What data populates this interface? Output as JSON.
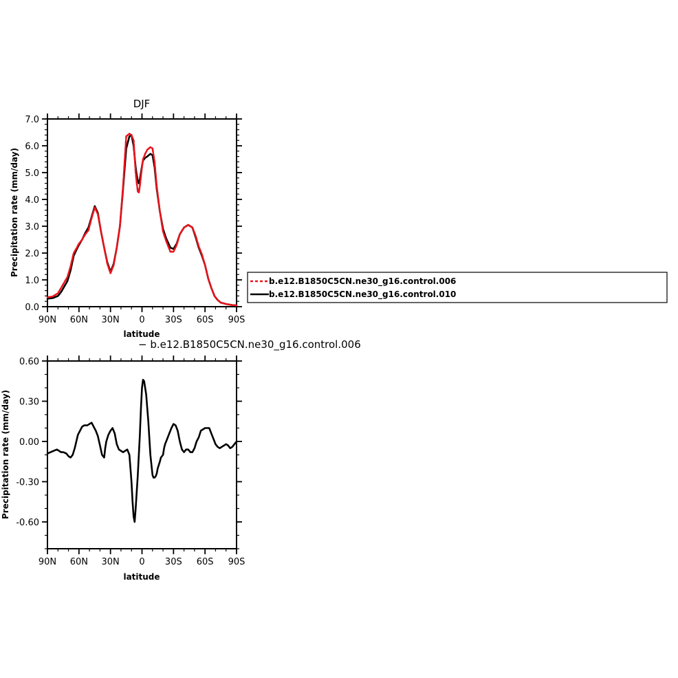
{
  "figure": {
    "subtitle": "− b.e12.B1850C5CN.ne30_g16.control.006"
  },
  "chart_data": [
    {
      "type": "line",
      "title": "DJF",
      "xlabel": "latitude",
      "ylabel": "Precipitation rate (mm/day)",
      "xlim": [
        90,
        -90
      ],
      "ylim": [
        0,
        7
      ],
      "x_ticks": [
        90,
        60,
        30,
        0,
        -30,
        -60,
        -90
      ],
      "x_tick_labels": [
        "90N",
        "60N",
        "30N",
        "0",
        "30S",
        "60S",
        "90S"
      ],
      "y_ticks": [
        0,
        1,
        2,
        3,
        4,
        5,
        6,
        7
      ],
      "y_tick_labels": [
        "0.0",
        "1.0",
        "2.0",
        "3.0",
        "4.0",
        "5.0",
        "6.0",
        "7.0"
      ],
      "grid": false,
      "legend_position": "right",
      "series": [
        {
          "name": "b.e12.B1850C5CN.ne30_g16.control.006",
          "color": "#e8141c",
          "dash": "dashed",
          "x": [
            90,
            85,
            80,
            77,
            74,
            71,
            68,
            65,
            62,
            60,
            57,
            54,
            51,
            48,
            45,
            42,
            39,
            36,
            33,
            30,
            27,
            24,
            21,
            18,
            15,
            12,
            10,
            8,
            6,
            5,
            4,
            3,
            2,
            0,
            -1,
            -2,
            -3,
            -5,
            -8,
            -10,
            -12,
            -14,
            -17,
            -20,
            -23,
            -27,
            -30,
            -33,
            -36,
            -40,
            -44,
            -48,
            -51,
            -54,
            -57,
            -60,
            -63,
            -66,
            -69,
            -72,
            -75,
            -78,
            -80,
            -83,
            -86,
            -90
          ],
          "y": [
            0.35,
            0.38,
            0.5,
            0.7,
            0.9,
            1.1,
            1.5,
            2.0,
            2.2,
            2.35,
            2.5,
            2.7,
            2.85,
            3.3,
            3.7,
            3.45,
            2.8,
            2.2,
            1.6,
            1.25,
            1.55,
            2.2,
            3.0,
            4.5,
            6.35,
            6.45,
            6.4,
            6.2,
            5.0,
            4.6,
            4.3,
            4.25,
            4.5,
            5.2,
            5.5,
            5.6,
            5.7,
            5.85,
            5.95,
            5.9,
            5.4,
            4.5,
            3.55,
            2.8,
            2.45,
            2.05,
            2.05,
            2.3,
            2.7,
            2.95,
            3.05,
            2.95,
            2.65,
            2.25,
            1.95,
            1.55,
            1.05,
            0.7,
            0.4,
            0.25,
            0.15,
            0.12,
            0.1,
            0.08,
            0.06,
            0.05
          ]
        },
        {
          "name": "b.e12.B1850C5CN.ne30_g16.control.010",
          "color": "#000000",
          "dash": "solid",
          "x": [
            90,
            85,
            80,
            77,
            74,
            71,
            68,
            65,
            62,
            60,
            57,
            54,
            51,
            48,
            45,
            42,
            39,
            36,
            33,
            30,
            27,
            24,
            21,
            18,
            15,
            12,
            10,
            8,
            6,
            5,
            4,
            3,
            2,
            0,
            -1,
            -2,
            -3,
            -5,
            -8,
            -10,
            -12,
            -14,
            -17,
            -20,
            -23,
            -27,
            -30,
            -33,
            -36,
            -40,
            -44,
            -48,
            -51,
            -54,
            -57,
            -60,
            -63,
            -66,
            -69,
            -72,
            -75,
            -78,
            -80,
            -83,
            -86,
            -90
          ],
          "y": [
            0.3,
            0.32,
            0.4,
            0.55,
            0.75,
            0.95,
            1.35,
            1.9,
            2.15,
            2.3,
            2.5,
            2.75,
            2.95,
            3.35,
            3.75,
            3.5,
            2.8,
            2.2,
            1.65,
            1.3,
            1.6,
            2.2,
            3.0,
            4.4,
            5.9,
            6.35,
            6.4,
            6.0,
            5.2,
            4.9,
            4.7,
            4.6,
            4.75,
            5.25,
            5.45,
            5.5,
            5.55,
            5.6,
            5.7,
            5.65,
            5.2,
            4.4,
            3.55,
            2.9,
            2.55,
            2.2,
            2.15,
            2.35,
            2.7,
            2.95,
            3.05,
            2.95,
            2.6,
            2.2,
            1.9,
            1.55,
            1.05,
            0.7,
            0.4,
            0.25,
            0.15,
            0.12,
            0.1,
            0.08,
            0.06,
            0.05
          ]
        }
      ]
    },
    {
      "type": "line",
      "title": "",
      "xlabel": "latitude",
      "ylabel": "Precipitation rate (mm/day)",
      "xlim": [
        90,
        -90
      ],
      "ylim": [
        -0.8,
        0.6
      ],
      "x_ticks": [
        90,
        60,
        30,
        0,
        -30,
        -60,
        -90
      ],
      "x_tick_labels": [
        "90N",
        "60N",
        "30N",
        "0",
        "30S",
        "60S",
        "90S"
      ],
      "y_ticks": [
        -0.6,
        -0.3,
        0.0,
        0.3,
        0.6
      ],
      "y_tick_labels": [
        "-0.60",
        "-0.30",
        "0.00",
        "0.30",
        "0.60"
      ],
      "grid": false,
      "series": [
        {
          "color": "#000000",
          "dash": "solid",
          "x": [
            90,
            87,
            84,
            81,
            79,
            77,
            75,
            72,
            70,
            68,
            66,
            64,
            61,
            59,
            57,
            55,
            52,
            50,
            48,
            46,
            44,
            42,
            40,
            38,
            36,
            35,
            34,
            32,
            30,
            28,
            26,
            24,
            22,
            20,
            18,
            16,
            14,
            12,
            10,
            9,
            8,
            7,
            6,
            4,
            2,
            1,
            0,
            -1,
            -2,
            -4,
            -6,
            -8,
            -10,
            -11,
            -12,
            -13,
            -14,
            -15,
            -17,
            -18,
            -19,
            -20,
            -21,
            -22,
            -24,
            -26,
            -28,
            -30,
            -32,
            -34,
            -36,
            -38,
            -40,
            -42,
            -44,
            -46,
            -48,
            -50,
            -52,
            -54,
            -56,
            -58,
            -60,
            -62,
            -64,
            -66,
            -68,
            -70,
            -72,
            -74,
            -76,
            -78,
            -80,
            -82,
            -84,
            -86,
            -88,
            -90
          ],
          "y": [
            -0.09,
            -0.08,
            -0.07,
            -0.06,
            -0.07,
            -0.08,
            -0.08,
            -0.09,
            -0.11,
            -0.12,
            -0.1,
            -0.05,
            0.05,
            0.08,
            0.11,
            0.12,
            0.12,
            0.13,
            0.14,
            0.11,
            0.08,
            0.04,
            -0.03,
            -0.1,
            -0.12,
            -0.05,
            0.0,
            0.05,
            0.08,
            0.1,
            0.06,
            -0.02,
            -0.06,
            -0.07,
            -0.08,
            -0.07,
            -0.06,
            -0.1,
            -0.3,
            -0.45,
            -0.56,
            -0.6,
            -0.5,
            -0.25,
            0.05,
            0.25,
            0.4,
            0.46,
            0.45,
            0.35,
            0.15,
            -0.1,
            -0.25,
            -0.27,
            -0.27,
            -0.26,
            -0.24,
            -0.2,
            -0.15,
            -0.12,
            -0.11,
            -0.1,
            -0.05,
            -0.02,
            0.02,
            0.06,
            0.1,
            0.13,
            0.12,
            0.08,
            0.0,
            -0.06,
            -0.08,
            -0.06,
            -0.06,
            -0.08,
            -0.08,
            -0.05,
            0.0,
            0.03,
            0.08,
            0.09,
            0.1,
            0.1,
            0.1,
            0.06,
            0.02,
            -0.02,
            -0.04,
            -0.05,
            -0.04,
            -0.03,
            -0.02,
            -0.03,
            -0.05,
            -0.04,
            -0.02,
            0.0
          ]
        }
      ]
    }
  ]
}
